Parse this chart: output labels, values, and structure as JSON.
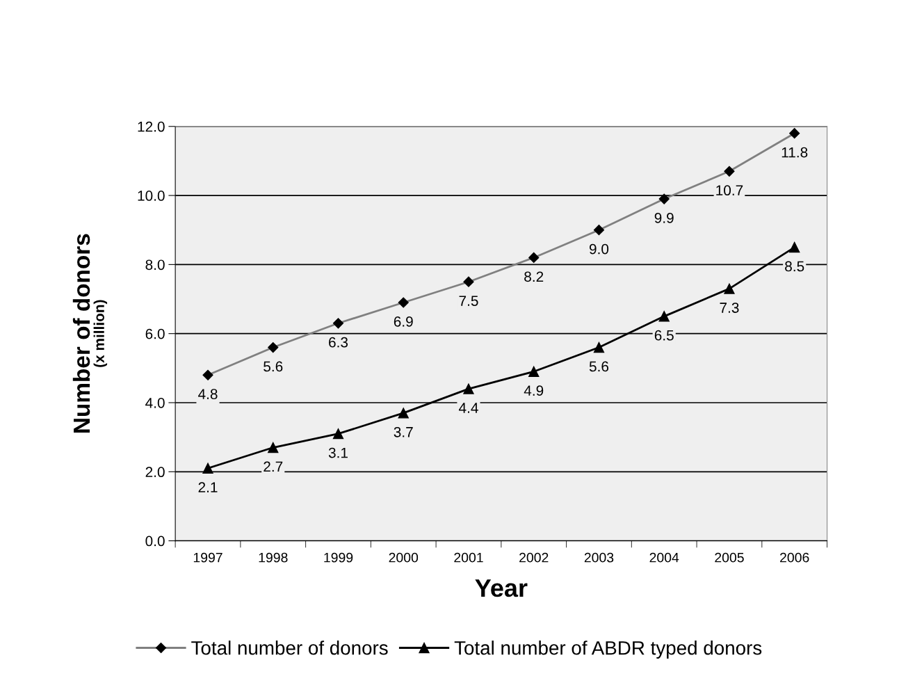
{
  "chart_data": {
    "type": "line",
    "xlabel": "Year",
    "ylabel": "Number of donors",
    "annotations": [
      "(x million)"
    ],
    "categories": [
      "1997",
      "1998",
      "1999",
      "2000",
      "2001",
      "2002",
      "2003",
      "2004",
      "2005",
      "2006"
    ],
    "series": [
      {
        "name": "Total number of donors",
        "color": "#808080",
        "marker": "diamond",
        "values": [
          4.8,
          5.6,
          6.3,
          6.9,
          7.5,
          8.2,
          9.0,
          9.9,
          10.7,
          11.8
        ],
        "value_labels": [
          "4.8",
          "5.6",
          "6.3",
          "6.9",
          "7.5",
          "8.2",
          "9.0",
          "9.9",
          "10.7",
          "11.8"
        ]
      },
      {
        "name": "Total number of ABDR typed donors",
        "color": "#000000",
        "marker": "triangle",
        "values": [
          2.1,
          2.7,
          3.1,
          3.7,
          4.4,
          4.9,
          5.6,
          6.5,
          7.3,
          8.5
        ],
        "value_labels": [
          "2.1",
          "2.7",
          "3.1",
          "3.7",
          "4.4",
          "4.9",
          "5.6",
          "6.5",
          "7.3",
          "8.5"
        ]
      }
    ],
    "ylim": [
      0,
      12
    ],
    "yticks": [
      {
        "value": 0,
        "label": "0.0"
      },
      {
        "value": 2,
        "label": "2.0"
      },
      {
        "value": 4,
        "label": "4.0"
      },
      {
        "value": 6,
        "label": "6.0"
      },
      {
        "value": 8,
        "label": "8.0"
      },
      {
        "value": 10,
        "label": "10.0"
      },
      {
        "value": 12,
        "label": "12.0"
      }
    ],
    "grid": "y",
    "legend": "bottom",
    "line_style": "solid"
  }
}
